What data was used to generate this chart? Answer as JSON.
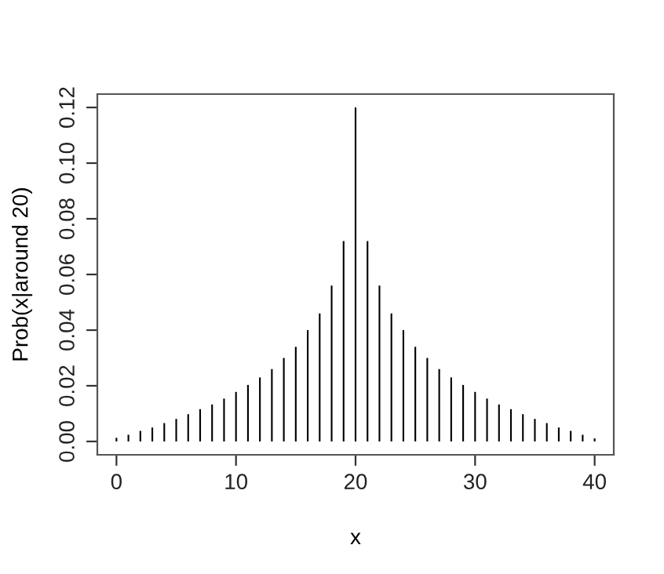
{
  "chart_data": {
    "type": "bar",
    "xlabel": "x",
    "ylabel": "Prob(x|around 20)",
    "x": [
      0,
      1,
      2,
      3,
      4,
      5,
      6,
      7,
      8,
      9,
      10,
      11,
      12,
      13,
      14,
      15,
      16,
      17,
      18,
      19,
      20,
      21,
      22,
      23,
      24,
      25,
      26,
      27,
      28,
      29,
      30,
      31,
      32,
      33,
      34,
      35,
      36,
      37,
      38,
      39,
      40
    ],
    "values": [
      0.0013,
      0.0024,
      0.0038,
      0.005,
      0.0066,
      0.0081,
      0.0098,
      0.0116,
      0.0133,
      0.0154,
      0.0178,
      0.0203,
      0.023,
      0.026,
      0.03,
      0.034,
      0.04,
      0.046,
      0.056,
      0.072,
      0.12,
      0.072,
      0.056,
      0.046,
      0.04,
      0.034,
      0.03,
      0.026,
      0.023,
      0.0203,
      0.0178,
      0.0154,
      0.0133,
      0.0116,
      0.0098,
      0.0081,
      0.0066,
      0.005,
      0.0038,
      0.0024,
      0.0011
    ],
    "color": "#000000",
    "xlim": [
      -1.6,
      41.6
    ],
    "ylim": [
      -0.0048,
      0.1248
    ],
    "xticks": [
      0,
      10,
      20,
      30,
      40
    ],
    "yticks": [
      {
        "value": 0,
        "label": "0.00"
      },
      {
        "value": 0.02,
        "label": "0.02"
      },
      {
        "value": 0.04,
        "label": "0.04"
      },
      {
        "value": 0.06,
        "label": "0.06"
      },
      {
        "value": 0.08,
        "label": "0.08"
      },
      {
        "value": 0.1,
        "label": "0.10"
      },
      {
        "value": 0.12,
        "label": "0.12"
      }
    ],
    "grid": false,
    "legend": false
  }
}
